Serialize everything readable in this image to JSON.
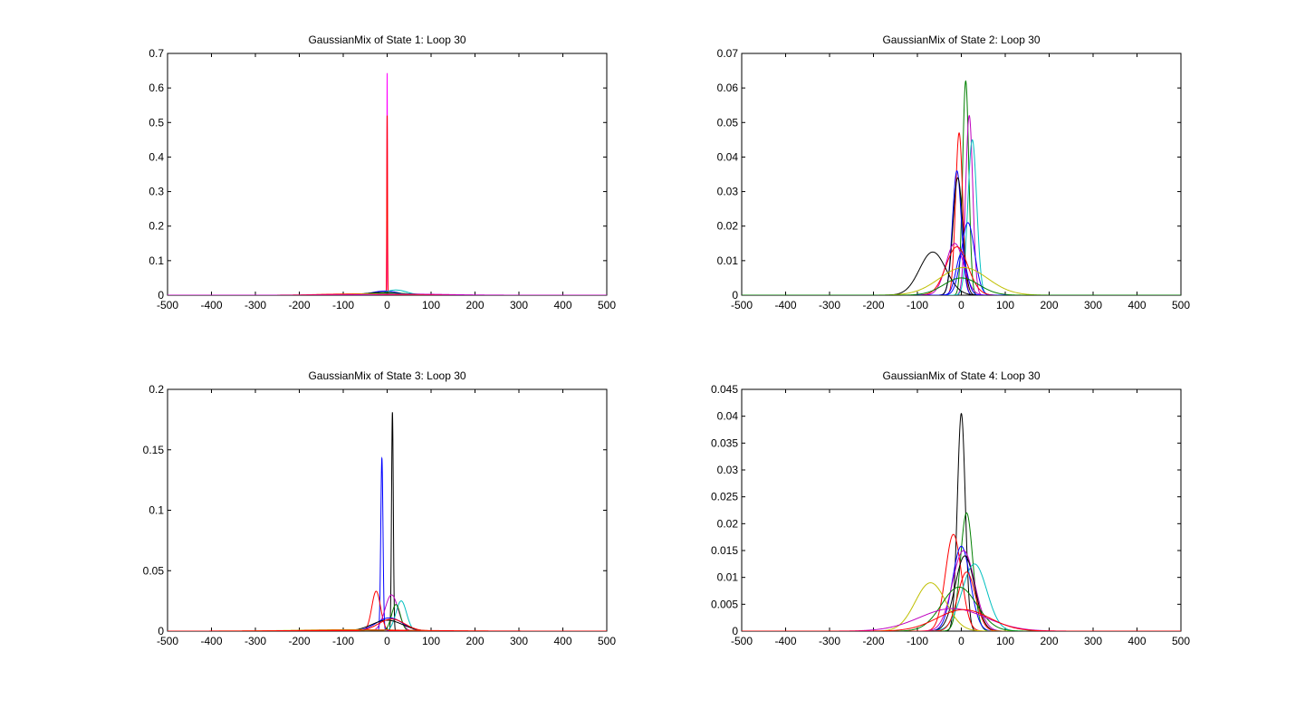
{
  "chart_data": [
    {
      "type": "line",
      "title": "GaussianMix of State 1: Loop 30",
      "xlim": [
        -500,
        500
      ],
      "ylim": [
        0,
        0.7
      ],
      "xticks": [
        "-500",
        "-400",
        "-300",
        "-200",
        "-100",
        "0",
        "100",
        "200",
        "300",
        "400",
        "500"
      ],
      "yticks": [
        "0",
        "0.1",
        "0.2",
        "0.3",
        "0.4",
        "0.5",
        "0.6",
        "0.7"
      ],
      "series": [
        {
          "color": "#ff00ff",
          "mu": 0,
          "sigma": 0.6,
          "peak": 0.643
        },
        {
          "color": "#ff0000",
          "mu": 0,
          "sigma": 0.8,
          "peak": 0.52
        },
        {
          "color": "#0000ff",
          "mu": -5,
          "sigma": 30,
          "peak": 0.012
        },
        {
          "color": "#00bfbf",
          "mu": 20,
          "sigma": 25,
          "peak": 0.015
        },
        {
          "color": "#000000",
          "mu": -10,
          "sigma": 40,
          "peak": 0.008
        },
        {
          "color": "#008000",
          "mu": 0,
          "sigma": 60,
          "peak": 0.006
        },
        {
          "color": "#bfbf00",
          "mu": -50,
          "sigma": 80,
          "peak": 0.004
        },
        {
          "color": "#ff0000",
          "mu": -100,
          "sigma": 60,
          "peak": 0.003
        },
        {
          "color": "#bf00bf",
          "mu": 50,
          "sigma": 90,
          "peak": 0.003
        }
      ]
    },
    {
      "type": "line",
      "title": "GaussianMix of State 2: Loop 30",
      "xlim": [
        -500,
        500
      ],
      "ylim": [
        0,
        0.07
      ],
      "xticks": [
        "-500",
        "-400",
        "-300",
        "-200",
        "-100",
        "0",
        "100",
        "200",
        "300",
        "400",
        "500"
      ],
      "yticks": [
        "0",
        "0.01",
        "0.02",
        "0.03",
        "0.04",
        "0.05",
        "0.06",
        "0.07"
      ],
      "series": [
        {
          "color": "#008000",
          "mu": 10,
          "sigma": 7,
          "peak": 0.062
        },
        {
          "color": "#bf00bf",
          "mu": 18,
          "sigma": 8,
          "peak": 0.052
        },
        {
          "color": "#ff0000",
          "mu": -5,
          "sigma": 8,
          "peak": 0.047
        },
        {
          "color": "#00bfbf",
          "mu": 25,
          "sigma": 10,
          "peak": 0.045
        },
        {
          "color": "#0000ff",
          "mu": -10,
          "sigma": 10,
          "peak": 0.036
        },
        {
          "color": "#000000",
          "mu": -8,
          "sigma": 11,
          "peak": 0.034
        },
        {
          "color": "#0000ff",
          "mu": 15,
          "sigma": 15,
          "peak": 0.021
        },
        {
          "color": "#bf00bf",
          "mu": -15,
          "sigma": 20,
          "peak": 0.015
        },
        {
          "color": "#ff0000",
          "mu": -10,
          "sigma": 25,
          "peak": 0.014
        },
        {
          "color": "#000000",
          "mu": -65,
          "sigma": 30,
          "peak": 0.0125
        },
        {
          "color": "#0000ff",
          "mu": 0,
          "sigma": 12,
          "peak": 0.012
        },
        {
          "color": "#bfbf00",
          "mu": 5,
          "sigma": 55,
          "peak": 0.008
        },
        {
          "color": "#008000",
          "mu": 0,
          "sigma": 40,
          "peak": 0.005
        }
      ]
    },
    {
      "type": "line",
      "title": "GaussianMix of State 3: Loop 30",
      "xlim": [
        -500,
        500
      ],
      "ylim": [
        0,
        0.2
      ],
      "xticks": [
        "-500",
        "-400",
        "-300",
        "-200",
        "-100",
        "0",
        "100",
        "200",
        "300",
        "400",
        "500"
      ],
      "yticks": [
        "0",
        "0.05",
        "0.1",
        "0.15",
        "0.2"
      ],
      "series": [
        {
          "color": "#000000",
          "mu": 12,
          "sigma": 2,
          "peak": 0.181
        },
        {
          "color": "#0000ff",
          "mu": -12,
          "sigma": 2.5,
          "peak": 0.143
        },
        {
          "color": "#ff0000",
          "mu": -25,
          "sigma": 10,
          "peak": 0.033
        },
        {
          "color": "#bf00bf",
          "mu": 10,
          "sigma": 15,
          "peak": 0.03
        },
        {
          "color": "#00bfbf",
          "mu": 32,
          "sigma": 12,
          "peak": 0.025
        },
        {
          "color": "#008000",
          "mu": 20,
          "sigma": 10,
          "peak": 0.022
        },
        {
          "color": "#0000ff",
          "mu": 5,
          "sigma": 30,
          "peak": 0.011
        },
        {
          "color": "#000000",
          "mu": 0,
          "sigma": 35,
          "peak": 0.009
        },
        {
          "color": "#ff0000",
          "mu": 10,
          "sigma": 30,
          "peak": 0.01
        },
        {
          "color": "#bfbf00",
          "mu": -80,
          "sigma": 120,
          "peak": 0.0012
        },
        {
          "color": "#ff0000",
          "mu": -50,
          "sigma": 150,
          "peak": 0.0008
        }
      ]
    },
    {
      "type": "line",
      "title": "GaussianMix of State 4: Loop 30",
      "xlim": [
        -500,
        500
      ],
      "ylim": [
        0,
        0.045
      ],
      "xticks": [
        "-500",
        "-400",
        "-300",
        "-200",
        "-100",
        "0",
        "100",
        "200",
        "300",
        "400",
        "500"
      ],
      "yticks": [
        "0",
        "0.005",
        "0.01",
        "0.015",
        "0.02",
        "0.025",
        "0.03",
        "0.035",
        "0.04",
        "0.045"
      ],
      "series": [
        {
          "color": "#000000",
          "mu": 0,
          "sigma": 9,
          "peak": 0.0405
        },
        {
          "color": "#008000",
          "mu": 12,
          "sigma": 14,
          "peak": 0.022
        },
        {
          "color": "#ff0000",
          "mu": -18,
          "sigma": 18,
          "peak": 0.018
        },
        {
          "color": "#0000ff",
          "mu": 0,
          "sigma": 20,
          "peak": 0.0158
        },
        {
          "color": "#bf00bf",
          "mu": 5,
          "sigma": 25,
          "peak": 0.015
        },
        {
          "color": "#000000",
          "mu": 8,
          "sigma": 22,
          "peak": 0.014
        },
        {
          "color": "#00bfbf",
          "mu": 30,
          "sigma": 28,
          "peak": 0.0125
        },
        {
          "color": "#ff0000",
          "mu": 12,
          "sigma": 20,
          "peak": 0.011
        },
        {
          "color": "#bfbf00",
          "mu": -70,
          "sigma": 35,
          "peak": 0.009
        },
        {
          "color": "#008000",
          "mu": -5,
          "sigma": 40,
          "peak": 0.0082
        },
        {
          "color": "#bf00bf",
          "mu": -20,
          "sigma": 75,
          "peak": 0.0042
        },
        {
          "color": "#ff0000",
          "mu": 5,
          "sigma": 60,
          "peak": 0.004
        }
      ]
    }
  ]
}
